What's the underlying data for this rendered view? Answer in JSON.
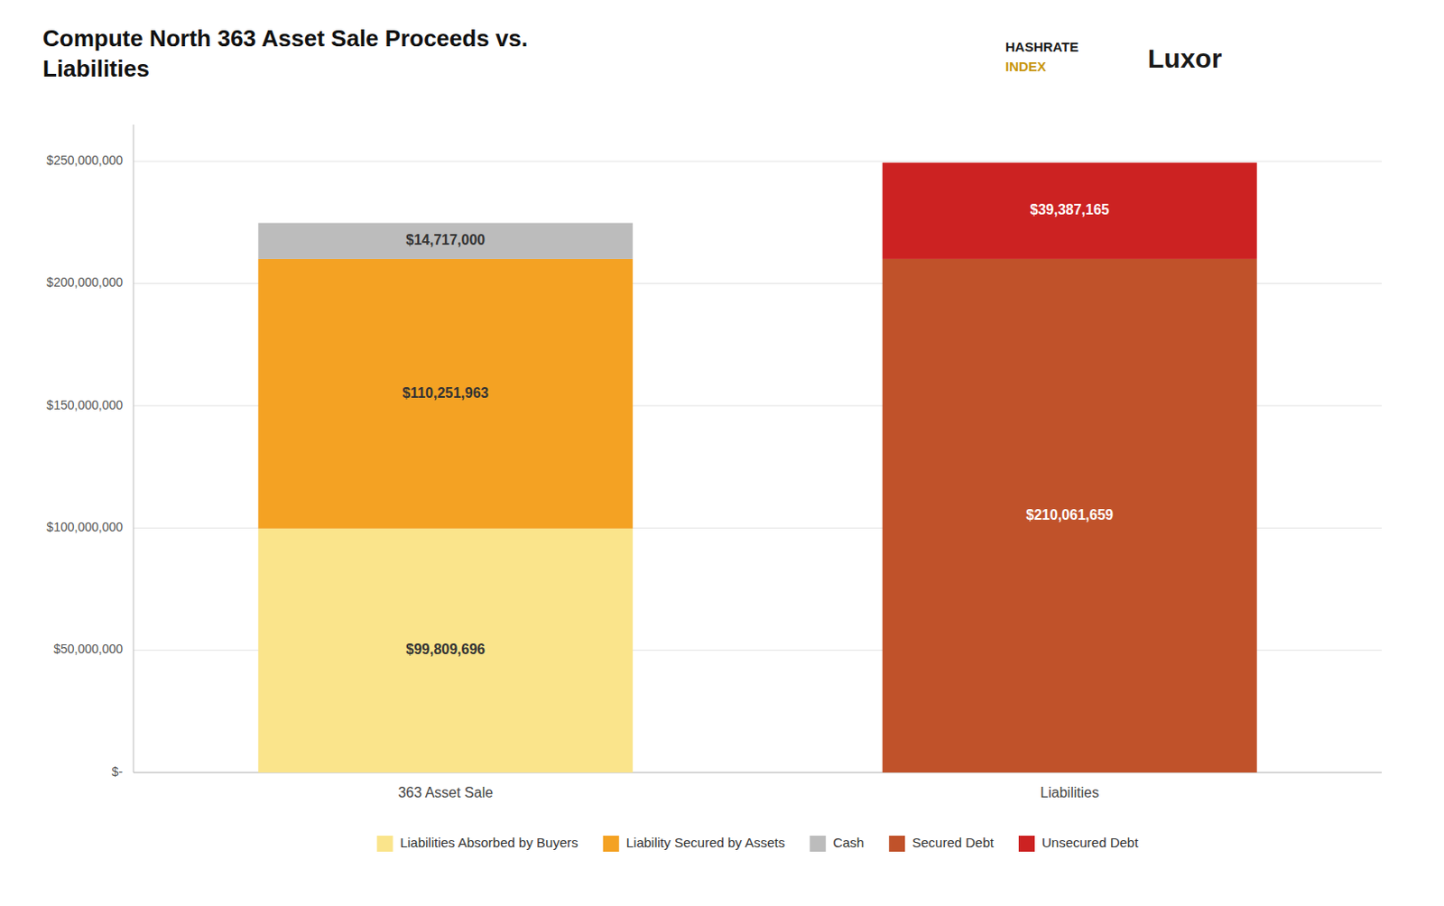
{
  "chart_data": {
    "type": "bar",
    "title": "Compute North 363 Asset Sale Proceeds vs.\nLiabilities",
    "annotations": [
      "HASHRATE",
      "INDEX",
      "Luxor"
    ],
    "categories": [
      "363 Asset Sale",
      "Liabilities"
    ],
    "series": [
      {
        "name": "Liabilities Absorbed by Buyers",
        "color": "#FAE48B",
        "values": [
          99809696,
          null
        ],
        "value_labels": [
          "$99,809,696",
          null
        ]
      },
      {
        "name": "Liability Secured by Assets",
        "color": "#F4A223",
        "values": [
          110251963,
          null
        ],
        "value_labels": [
          "$110,251,963",
          null
        ]
      },
      {
        "name": "Cash",
        "color": "#BCBCBC",
        "values": [
          14717000,
          null
        ],
        "value_labels": [
          "$14,717,000",
          null
        ]
      },
      {
        "name": "Secured Debt",
        "color": "#C0522A",
        "values": [
          null,
          210061659
        ],
        "value_labels": [
          null,
          "$210,061,659"
        ]
      },
      {
        "name": "Unsecured Debt",
        "color": "#CC2222",
        "values": [
          null,
          39387165
        ],
        "value_labels": [
          null,
          "$39,387,165"
        ]
      }
    ],
    "stacked": true,
    "data_labels": true,
    "ylim": [
      0,
      265000000
    ],
    "yticks": [
      {
        "value": 0,
        "label": "$-"
      },
      {
        "value": 50000000,
        "label": "$50,000,000"
      },
      {
        "value": 100000000,
        "label": "$100,000,000"
      },
      {
        "value": 150000000,
        "label": "$150,000,000"
      },
      {
        "value": 200000000,
        "label": "$200,000,000"
      },
      {
        "value": 250000000,
        "label": "$250,000,000"
      }
    ],
    "grid": true,
    "legend": "bottom"
  }
}
